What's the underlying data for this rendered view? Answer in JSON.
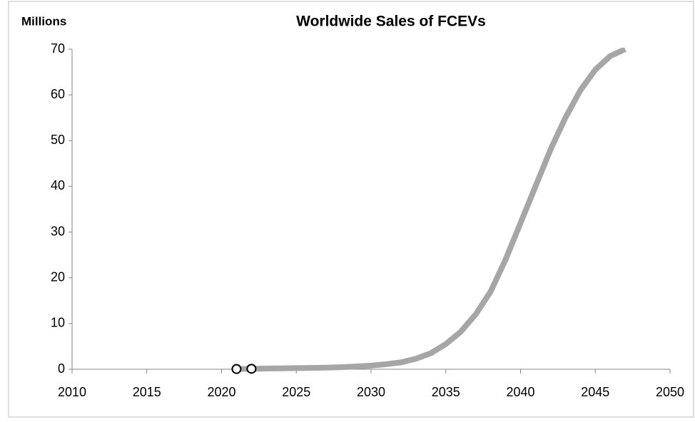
{
  "chart_data": {
    "type": "line",
    "title": "Worldwide Sales of FCEVs",
    "y_label": "Millions",
    "x": [
      2021,
      2022,
      2023,
      2024,
      2025,
      2026,
      2027,
      2028,
      2029,
      2030,
      2031,
      2032,
      2033,
      2034,
      2035,
      2036,
      2037,
      2038,
      2039,
      2040,
      2041,
      2042,
      2043,
      2044,
      2045,
      2046,
      2047
    ],
    "series": [
      {
        "color": "#a6a6a6",
        "values": [
          0.05,
          0.1,
          0.15,
          0.2,
          0.25,
          0.3,
          0.35,
          0.45,
          0.6,
          0.8,
          1.1,
          1.5,
          2.3,
          3.5,
          5.5,
          8.2,
          12,
          17,
          24,
          32,
          40,
          48,
          55,
          61,
          65.5,
          68.5,
          70
        ]
      },
      {
        "color": "#000000",
        "marker": "circle",
        "values": [
          0.05,
          0.1,
          null,
          null,
          null,
          null,
          null,
          null,
          null,
          null,
          null,
          null,
          null,
          null,
          null,
          null,
          null,
          null,
          null,
          null,
          null,
          null,
          null,
          null,
          null,
          null,
          null
        ]
      }
    ],
    "xlim": [
      2010,
      2050
    ],
    "xticks": [
      2010,
      2015,
      2020,
      2025,
      2030,
      2035,
      2040,
      2045,
      2050
    ],
    "ylim": [
      0,
      70
    ],
    "yticks": [
      0,
      10,
      20,
      30,
      40,
      50,
      60,
      70
    ],
    "grid": false
  }
}
